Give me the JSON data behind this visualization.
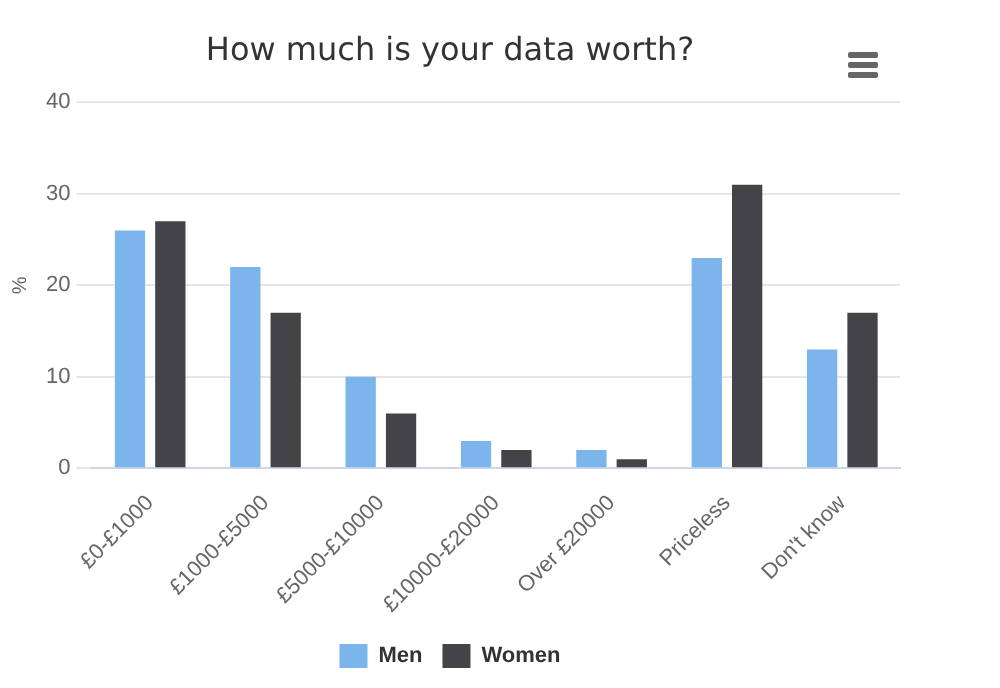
{
  "chart_data": {
    "type": "bar",
    "title": "How much is your data worth?",
    "ylabel": "%",
    "categories": [
      "£0-£1000",
      "£1000-£5000",
      "£5000-£10000",
      "£10000-£20000",
      "Over £20000",
      "Priceless",
      "Don't know"
    ],
    "series": [
      {
        "name": "Men",
        "color": "#7cb5ec",
        "values": [
          26,
          22,
          10,
          3,
          2,
          23,
          13
        ]
      },
      {
        "name": "Women",
        "color": "#434348",
        "values": [
          27,
          17,
          6,
          2,
          1,
          31,
          17
        ]
      }
    ],
    "ylim": [
      0,
      40
    ],
    "yticks": [
      0,
      10,
      20,
      30,
      40
    ],
    "grid": "y",
    "legend": "bottom"
  }
}
